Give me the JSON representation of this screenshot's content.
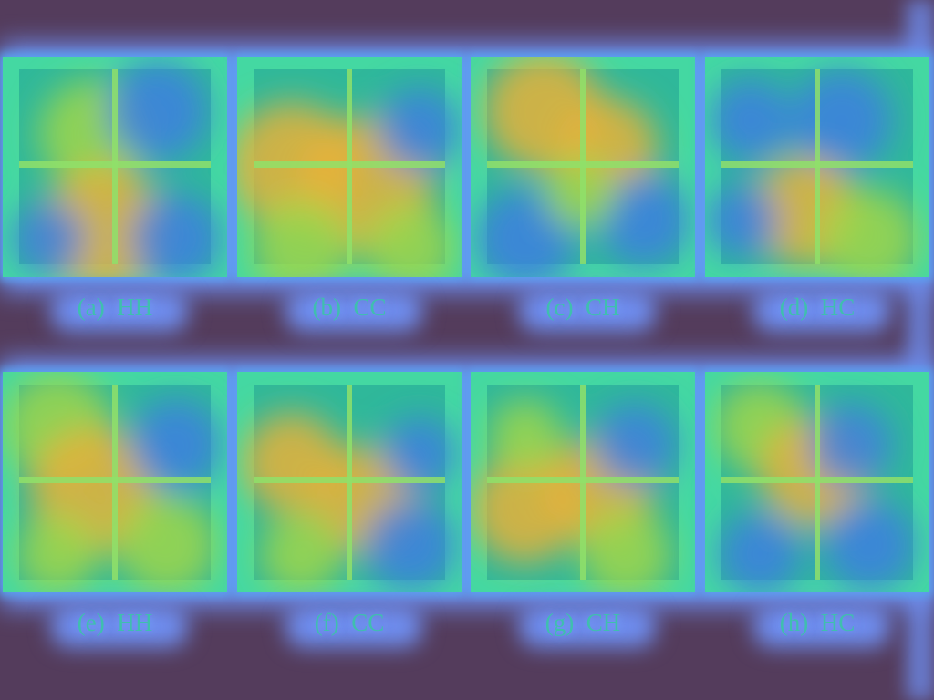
{
  "figure": {
    "panels": [
      {
        "id": "a",
        "caption": "(a)  HH"
      },
      {
        "id": "b",
        "caption": "(b)  CC"
      },
      {
        "id": "c",
        "caption": "(c)  CH"
      },
      {
        "id": "d",
        "caption": "(d)  HC"
      },
      {
        "id": "e",
        "caption": "(e)  HH"
      },
      {
        "id": "f",
        "caption": "(f)  CC"
      },
      {
        "id": "g",
        "caption": "(g)  CH"
      },
      {
        "id": "h",
        "caption": "(h)  HC"
      }
    ],
    "colors": {
      "background": "#543c5c",
      "glow": "#6f8ef0",
      "frame": "#44d8a2",
      "cool": "#3d7fe0",
      "warm": "#e8b23a",
      "mid": "#9fd64a"
    }
  }
}
